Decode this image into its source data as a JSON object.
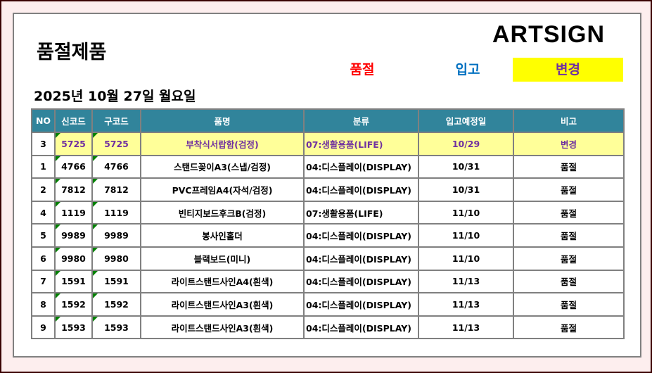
{
  "title": "품절제품",
  "logo": "ARTSIGN",
  "legend": {
    "soldout": "품절",
    "incoming": "입고",
    "changed": "변경"
  },
  "date": "2025년 10월 27일 월요일",
  "colors": {
    "header": "#31849b",
    "soldout": "#ff0000",
    "incoming": "#0070c0",
    "changed": "#7030a0",
    "highlight": "#ffff99"
  },
  "table": {
    "headers": [
      "NO",
      "신코드",
      "구코드",
      "품명",
      "분류",
      "입고예정일",
      "비고"
    ],
    "rows": [
      {
        "no": "3",
        "new": "5725",
        "old": "5725",
        "name": "부착식서랍함(검정)",
        "cat": "07:생활용품(LIFE)",
        "date": "10/29",
        "note": "변경",
        "hl": true
      },
      {
        "no": "1",
        "new": "4766",
        "old": "4766",
        "name": "스탠드꽂이A3(스냅/검정)",
        "cat": "04:디스플레이(DISPLAY)",
        "date": "10/31",
        "note": "품절"
      },
      {
        "no": "2",
        "new": "7812",
        "old": "7812",
        "name": "PVC프레임A4(자석/검정)",
        "cat": "04:디스플레이(DISPLAY)",
        "date": "10/31",
        "note": "품절"
      },
      {
        "no": "4",
        "new": "1119",
        "old": "1119",
        "name": "빈티지보드후크B(검정)",
        "cat": "07:생활용품(LIFE)",
        "date": "11/10",
        "note": "품절"
      },
      {
        "no": "5",
        "new": "9989",
        "old": "9989",
        "name": "봉사인홀더",
        "cat": "04:디스플레이(DISPLAY)",
        "date": "11/10",
        "note": "품절"
      },
      {
        "no": "6",
        "new": "9980",
        "old": "9980",
        "name": "블랙보드(미니)",
        "cat": "04:디스플레이(DISPLAY)",
        "date": "11/10",
        "note": "품절"
      },
      {
        "no": "7",
        "new": "1591",
        "old": "1591",
        "name": "라이트스탠드사인A4(흰색)",
        "cat": "04:디스플레이(DISPLAY)",
        "date": "11/13",
        "note": "품절"
      },
      {
        "no": "8",
        "new": "1592",
        "old": "1592",
        "name": "라이트스탠드사인A3(흰색)",
        "cat": "04:디스플레이(DISPLAY)",
        "date": "11/13",
        "note": "품절"
      },
      {
        "no": "9",
        "new": "1593",
        "old": "1593",
        "name": "라이트스탠드사인A3(흰색)",
        "cat": "04:디스플레이(DISPLAY)",
        "date": "11/13",
        "note": "품절"
      }
    ]
  }
}
